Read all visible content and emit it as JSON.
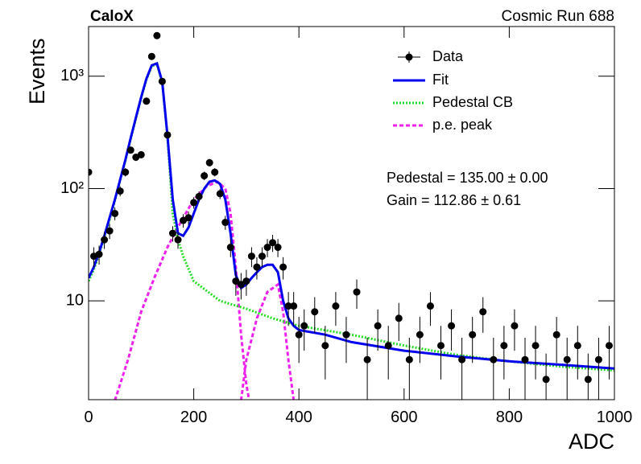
{
  "chart_data": {
    "type": "scatter",
    "title": "CaloX",
    "subtitle": "Cosmic Run 688",
    "x_label": "ADC",
    "y_label": "Events",
    "log_y": true,
    "xlim": [
      0,
      1000
    ],
    "ylim": [
      1.32,
      2770
    ],
    "xticks": [
      0,
      200,
      400,
      600,
      800,
      1000
    ],
    "yticks": [
      {
        "value": 10,
        "label": "10"
      },
      {
        "value": 100,
        "label": "10²"
      },
      {
        "value": 1000,
        "label": "10³"
      }
    ],
    "annotations": [
      "Pedestal = 135.00 ± 0.00",
      "Gain = 112.86 ± 0.61"
    ],
    "series": [
      {
        "name": "Data",
        "type": "errorbar",
        "color": "#000000",
        "x": [
          0,
          10,
          20,
          30,
          40,
          50,
          60,
          70,
          80,
          90,
          100,
          110,
          120,
          130,
          140,
          150,
          160,
          170,
          180,
          190,
          200,
          210,
          220,
          230,
          240,
          250,
          260,
          270,
          280,
          290,
          300,
          310,
          320,
          330,
          340,
          350,
          360,
          370,
          380,
          390,
          400,
          410,
          430,
          450,
          470,
          490,
          510,
          530,
          550,
          570,
          590,
          610,
          630,
          650,
          670,
          690,
          710,
          730,
          750,
          770,
          790,
          810,
          830,
          850,
          870,
          890,
          910,
          930,
          950,
          970,
          990
        ],
        "values": [
          140,
          25,
          26,
          35,
          42,
          60,
          95,
          140,
          220,
          190,
          200,
          600,
          1500,
          2300,
          900,
          300,
          40,
          35,
          52,
          55,
          75,
          85,
          130,
          170,
          140,
          90,
          50,
          30,
          15,
          14,
          15,
          25,
          20,
          25,
          30,
          33,
          30,
          20,
          9,
          9,
          5,
          6,
          8,
          4,
          9,
          5,
          12,
          3,
          6,
          4,
          7,
          3,
          5,
          9,
          4,
          6,
          3,
          5,
          8,
          3,
          4,
          6,
          3,
          4,
          2,
          5,
          3,
          4,
          2,
          3,
          4
        ],
        "errors": [
          12,
          5,
          5,
          6,
          6.5,
          7.7,
          9.7,
          12,
          15,
          14,
          14,
          24,
          39,
          48,
          30,
          17,
          6.3,
          5.9,
          7.2,
          7.4,
          8.7,
          9.2,
          11.4,
          13,
          11.8,
          9.5,
          7.1,
          5.5,
          3.9,
          3.7,
          3.9,
          5,
          4.5,
          5,
          5.5,
          5.7,
          5.5,
          4.5,
          3,
          3,
          2.2,
          2.4,
          2.8,
          2,
          3,
          2.2,
          3.5,
          1.7,
          2.4,
          2,
          2.6,
          1.7,
          2.2,
          3,
          2,
          2.4,
          1.7,
          2.2,
          2.8,
          1.7,
          2,
          2.4,
          1.7,
          2,
          1.4,
          2.2,
          1.7,
          2,
          1.4,
          1.7,
          2
        ]
      },
      {
        "name": "Fit",
        "type": "line",
        "color": "#0000ee",
        "dash": "none",
        "x": [
          0,
          10,
          20,
          30,
          40,
          50,
          60,
          70,
          80,
          90,
          100,
          110,
          120,
          130,
          140,
          150,
          160,
          170,
          180,
          190,
          200,
          210,
          220,
          230,
          240,
          250,
          260,
          270,
          280,
          290,
          300,
          310,
          320,
          330,
          340,
          350,
          360,
          370,
          380,
          390,
          400,
          450,
          500,
          600,
          700,
          800,
          900,
          1000
        ],
        "values": [
          16,
          20,
          27,
          38,
          55,
          80,
          120,
          180,
          280,
          430,
          650,
          950,
          1250,
          1300,
          900,
          300,
          80,
          40,
          38,
          45,
          60,
          80,
          100,
          115,
          118,
          110,
          80,
          40,
          17,
          13,
          14,
          16,
          18,
          20,
          21,
          21,
          18,
          10,
          7,
          6,
          5.5,
          5,
          4.3,
          3.6,
          3.2,
          2.9,
          2.7,
          2.5
        ]
      },
      {
        "name": "Pedestal CB",
        "type": "line",
        "color": "#22dd22",
        "dash": "2 2",
        "x": [
          0,
          10,
          20,
          30,
          40,
          50,
          60,
          70,
          80,
          90,
          100,
          110,
          120,
          130,
          140,
          150,
          160,
          170,
          180,
          200,
          250,
          300,
          350,
          400,
          500,
          600,
          700,
          800,
          900,
          1000
        ],
        "values": [
          15,
          19,
          26,
          37,
          53,
          78,
          118,
          176,
          275,
          420,
          640,
          930,
          1230,
          1280,
          880,
          290,
          60,
          35,
          25,
          15,
          10,
          8.5,
          7,
          6,
          5,
          4,
          3.3,
          2.9,
          2.6,
          2.4
        ]
      },
      {
        "name": "p.e. peak",
        "type": "line",
        "color": "#ee22ee",
        "dash": "5 3",
        "x": [
          50,
          75,
          100,
          125,
          150,
          175,
          200,
          225,
          245,
          260,
          270,
          280,
          290,
          300,
          310,
          null,
          290,
          300,
          320,
          340,
          360,
          370,
          380,
          390,
          395
        ],
        "values": [
          1.3,
          3,
          8,
          16,
          30,
          50,
          80,
          105,
          115,
          100,
          60,
          20,
          5,
          1.8,
          1,
          null,
          1.3,
          3,
          7,
          12,
          14,
          8,
          3,
          1.3,
          0.8
        ]
      }
    ]
  }
}
